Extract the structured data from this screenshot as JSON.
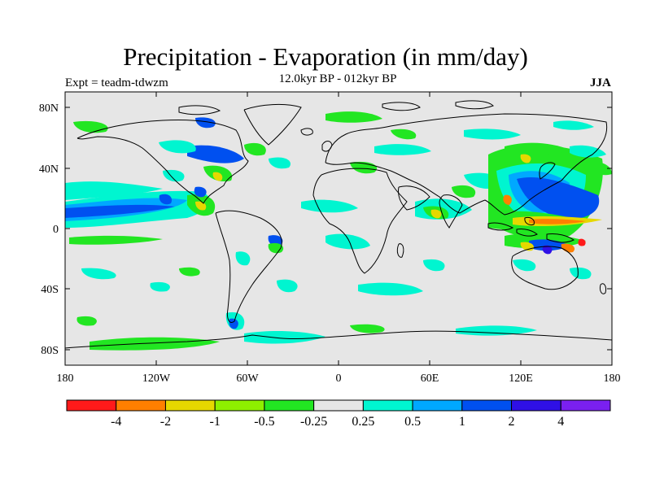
{
  "title": "Precipitation - Evaporation (in mm/day)",
  "subtitle": "12.0kyr BP - 012kyr BP",
  "experiment": "Expt = teadm-tdwzm",
  "season": "JJA",
  "x_ticks": [
    "180",
    "120W",
    "60W",
    "0",
    "60E",
    "120E",
    "180"
  ],
  "y_ticks": [
    "80N",
    "40N",
    "0",
    "40S",
    "80S"
  ],
  "colorbar": {
    "colors": [
      "#ff1a1a",
      "#ff7f00",
      "#e6d800",
      "#8ef000",
      "#22e622",
      "#e6e6e6",
      "#00f5d0",
      "#00a8ff",
      "#0050f0",
      "#2f10e6",
      "#7a20f0"
    ],
    "labels": [
      "-4",
      "-2",
      "-1",
      "-0.5",
      "-0.25",
      "0.25",
      "0.5",
      "1",
      "2",
      "4"
    ]
  },
  "colors": {
    "background": "#e6e6e6",
    "coast": "#000000"
  }
}
